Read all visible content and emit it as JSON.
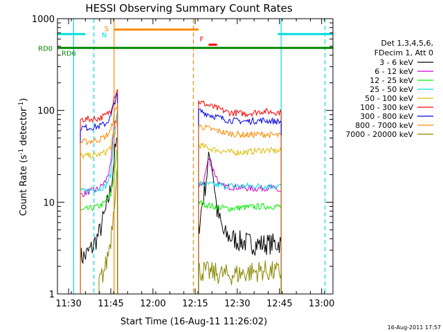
{
  "chart_data": {
    "type": "line",
    "title": "HESSI Observing Summary Count Rates",
    "xlabel": "Start Time (16-Aug-11 11:26:02)",
    "ylabel": "Count Rate (s",
    "ylabel_sup1": "-1",
    "ylabel_mid": " detector",
    "ylabel_sup2": "-1",
    "ylabel_end": ")",
    "yscale": "log",
    "xlim": [
      11.434,
      13.067
    ],
    "ylim": [
      1,
      1000
    ],
    "x_ticks": [
      {
        "label": "11:30",
        "value": 11.5
      },
      {
        "label": "11:45",
        "value": 11.75
      },
      {
        "label": "12:00",
        "value": 12.0
      },
      {
        "label": "12:15",
        "value": 12.25
      },
      {
        "label": "12:30",
        "value": 12.5
      },
      {
        "label": "12:45",
        "value": 12.75
      },
      {
        "label": "13:00",
        "value": 13.0
      }
    ],
    "y_ticks": [
      {
        "label": "1",
        "value": 1
      },
      {
        "label": "10",
        "value": 10
      },
      {
        "label": "100",
        "value": 100
      },
      {
        "label": "1000",
        "value": 1000
      }
    ],
    "legend_header": [
      "Det 1,3,4,5,6,",
      "FDecim 1, Att 0"
    ],
    "legend_position": "right",
    "series": [
      {
        "name": "3 - 6 keV",
        "color": "#000000",
        "segments": [
          [
            [
              11.57,
              2.5
            ],
            [
              11.6,
              2.6
            ],
            [
              11.64,
              3.2
            ],
            [
              11.68,
              4.5
            ],
            [
              11.72,
              8
            ],
            [
              11.75,
              14
            ],
            [
              11.77,
              30
            ],
            [
              11.79,
              50
            ]
          ],
          [
            [
              12.27,
              5
            ],
            [
              12.29,
              9
            ],
            [
              12.31,
              15
            ],
            [
              12.33,
              28
            ],
            [
              12.34,
              35
            ],
            [
              12.36,
              18
            ],
            [
              12.38,
              8
            ],
            [
              12.42,
              4.5
            ],
            [
              12.5,
              3.8
            ],
            [
              12.6,
              3.5
            ],
            [
              12.7,
              3.5
            ],
            [
              12.76,
              3.6
            ]
          ]
        ]
      },
      {
        "name": "6 - 12 keV",
        "color": "#cc00cc",
        "segments": [
          [
            [
              11.57,
              12
            ],
            [
              11.62,
              13
            ],
            [
              11.68,
              14
            ],
            [
              11.72,
              17
            ],
            [
              11.75,
              25
            ],
            [
              11.77,
              70
            ],
            [
              11.79,
              90
            ]
          ],
          [
            [
              12.27,
              14
            ],
            [
              12.3,
              17
            ],
            [
              12.33,
              30
            ],
            [
              12.36,
              22
            ],
            [
              12.4,
              15
            ],
            [
              12.5,
              14.5
            ],
            [
              12.6,
              14
            ],
            [
              12.7,
              14.5
            ],
            [
              12.76,
              13
            ]
          ]
        ]
      },
      {
        "name": "12 - 25 keV",
        "color": "#00ee00",
        "segments": [
          [
            [
              11.57,
              8
            ],
            [
              11.62,
              8.5
            ],
            [
              11.68,
              9
            ],
            [
              11.72,
              10
            ],
            [
              11.75,
              12
            ],
            [
              11.77,
              20
            ],
            [
              11.79,
              40
            ]
          ],
          [
            [
              12.27,
              10
            ],
            [
              12.35,
              9
            ],
            [
              12.45,
              8.5
            ],
            [
              12.55,
              8.8
            ],
            [
              12.65,
              9
            ],
            [
              12.76,
              9
            ]
          ]
        ]
      },
      {
        "name": "25 - 50 keV",
        "color": "#00dddd",
        "segments": [
          [
            [
              11.57,
              13
            ],
            [
              11.62,
              13.5
            ],
            [
              11.68,
              14
            ],
            [
              11.72,
              15
            ],
            [
              11.75,
              20
            ],
            [
              11.77,
              50
            ],
            [
              11.79,
              100
            ]
          ],
          [
            [
              12.27,
              16
            ],
            [
              12.35,
              15.5
            ],
            [
              12.45,
              15
            ],
            [
              12.55,
              15
            ],
            [
              12.65,
              15
            ],
            [
              12.76,
              15
            ]
          ]
        ]
      },
      {
        "name": "50 - 100 keV",
        "color": "#ddbb00",
        "segments": [
          [
            [
              11.57,
              32
            ],
            [
              11.62,
              32
            ],
            [
              11.68,
              33
            ],
            [
              11.72,
              35
            ],
            [
              11.75,
              40
            ],
            [
              11.77,
              60
            ],
            [
              11.79,
              80
            ]
          ],
          [
            [
              12.27,
              42
            ],
            [
              12.35,
              38
            ],
            [
              12.45,
              35
            ],
            [
              12.55,
              35
            ],
            [
              12.65,
              37
            ],
            [
              12.76,
              36
            ]
          ]
        ]
      },
      {
        "name": "100 - 300 keV",
        "color": "#ff0000",
        "segments": [
          [
            [
              11.57,
              80
            ],
            [
              11.62,
              80
            ],
            [
              11.68,
              82
            ],
            [
              11.72,
              88
            ],
            [
              11.75,
              100
            ],
            [
              11.77,
              140
            ],
            [
              11.79,
              170
            ]
          ],
          [
            [
              12.27,
              125
            ],
            [
              12.35,
              110
            ],
            [
              12.45,
              95
            ],
            [
              12.55,
              92
            ],
            [
              12.65,
              98
            ],
            [
              12.76,
              95
            ]
          ]
        ]
      },
      {
        "name": "300 - 800 keV",
        "color": "#0000dd",
        "segments": [
          [
            [
              11.57,
              65
            ],
            [
              11.62,
              65
            ],
            [
              11.68,
              67
            ],
            [
              11.72,
              72
            ],
            [
              11.75,
              85
            ],
            [
              11.77,
              120
            ],
            [
              11.79,
              150
            ]
          ],
          [
            [
              12.27,
              100
            ],
            [
              12.35,
              88
            ],
            [
              12.45,
              78
            ],
            [
              12.55,
              76
            ],
            [
              12.65,
              78
            ],
            [
              12.76,
              75
            ]
          ]
        ]
      },
      {
        "name": "800 - 7000 keV",
        "color": "#ff8800",
        "segments": [
          [
            [
              11.57,
              45
            ],
            [
              11.62,
              46
            ],
            [
              11.68,
              48
            ],
            [
              11.72,
              52
            ],
            [
              11.75,
              60
            ],
            [
              11.77,
              90
            ],
            [
              11.79,
              120
            ]
          ],
          [
            [
              12.27,
              68
            ],
            [
              12.35,
              62
            ],
            [
              12.45,
              56
            ],
            [
              12.55,
              54
            ],
            [
              12.65,
              55
            ],
            [
              12.76,
              53
            ]
          ]
        ]
      },
      {
        "name": "7000 - 20000 keV",
        "color": "#888800",
        "segments": [
          [
            [
              11.68,
              1.3
            ],
            [
              11.72,
              2
            ],
            [
              11.75,
              4
            ],
            [
              11.77,
              10
            ],
            [
              11.79,
              25
            ]
          ],
          [
            [
              12.27,
              1.8
            ],
            [
              12.35,
              1.7
            ],
            [
              12.45,
              1.6
            ],
            [
              12.55,
              1.7
            ],
            [
              12.65,
              1.8
            ],
            [
              12.76,
              1.7
            ]
          ]
        ]
      }
    ],
    "annotations": {
      "S": {
        "label": "S",
        "color": "#ff8800"
      },
      "N": {
        "label": "N",
        "color": "#00dddd"
      },
      "F": {
        "label": "F",
        "color": "#ff0000"
      },
      "RD0": {
        "label": "RD0",
        "color": "#008800"
      },
      "RD6": {
        "label": "RD6",
        "color": "#008800"
      }
    },
    "night_intervals": [
      [
        11.434,
        11.6
      ],
      [
        12.74,
        13.067
      ]
    ],
    "saa_interval": [
      11.77,
      12.27
    ],
    "flare_interval": [
      12.33,
      12.38
    ],
    "data_gaps": [
      [
        11.64,
        11.64
      ],
      [
        12.27,
        12.27
      ]
    ],
    "vertical_markers": {
      "cyan_solid": [
        11.53,
        12.76
      ],
      "cyan_dashed": [
        11.65,
        13.02
      ],
      "orange_solid": [
        11.77
      ],
      "orange_dashed": [
        12.24
      ]
    }
  },
  "footer": {
    "date_stamp": "16-Aug-2011 17:57"
  }
}
